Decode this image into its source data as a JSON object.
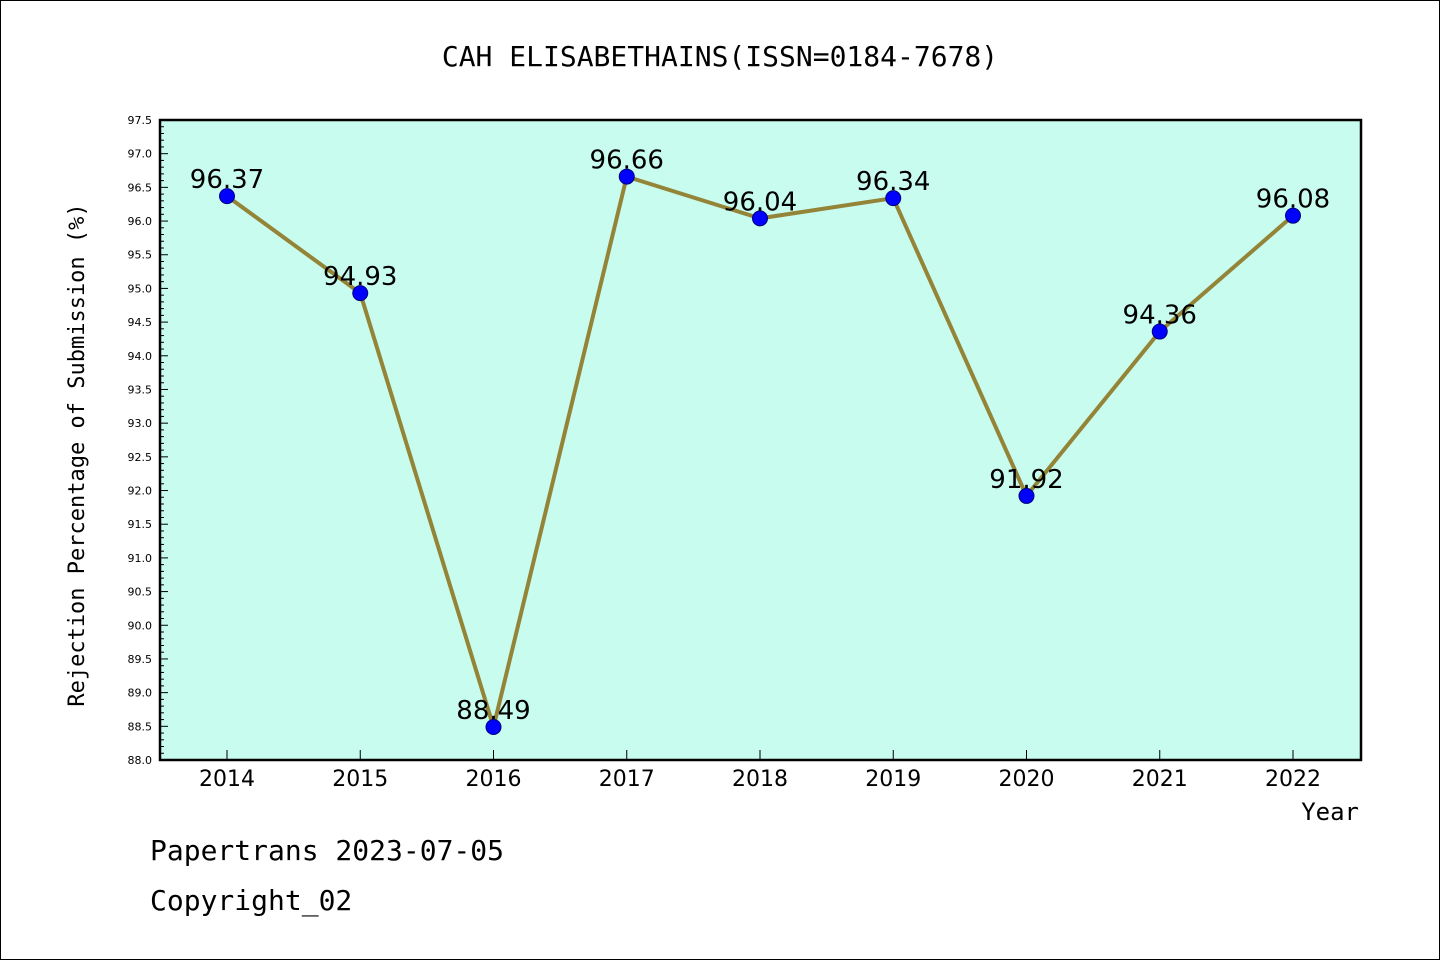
{
  "chart_data": {
    "type": "line",
    "title": "CAH ELISABETHAINS(ISSN=0184-7678)",
    "xlabel": "Year",
    "ylabel": "Rejection Percentage of Submission (%)",
    "categories": [
      "2014",
      "2015",
      "2016",
      "2017",
      "2018",
      "2019",
      "2020",
      "2021",
      "2022"
    ],
    "series": [
      {
        "values": [
          96.37,
          94.93,
          88.49,
          96.66,
          96.04,
          96.34,
          91.92,
          94.36,
          96.08
        ],
        "labels": [
          "96.37",
          "94.93",
          "88.49",
          "96.66",
          "96.04",
          "96.34",
          "91.92",
          "94.36",
          "96.08"
        ]
      }
    ],
    "ylim": [
      88.0,
      97.5
    ],
    "ytick_step": 0.5,
    "yticks": [
      "88.0",
      "88.5",
      "89.0",
      "89.5",
      "90.0",
      "90.5",
      "91.0",
      "91.5",
      "92.0",
      "92.5",
      "93.0",
      "93.5",
      "94.0",
      "94.5",
      "95.0",
      "95.5",
      "96.0",
      "96.5",
      "97.0",
      "97.5"
    ],
    "grid": false,
    "legend": "none",
    "colors": {
      "plot_background": "#c8fcee",
      "line": "#948438",
      "marker": "#0000ff",
      "marker_edge": "#00007a",
      "axis": "#000000"
    }
  },
  "footer": {
    "line1": "Papertrans 2023-07-05",
    "line2": "Copyright_02"
  }
}
